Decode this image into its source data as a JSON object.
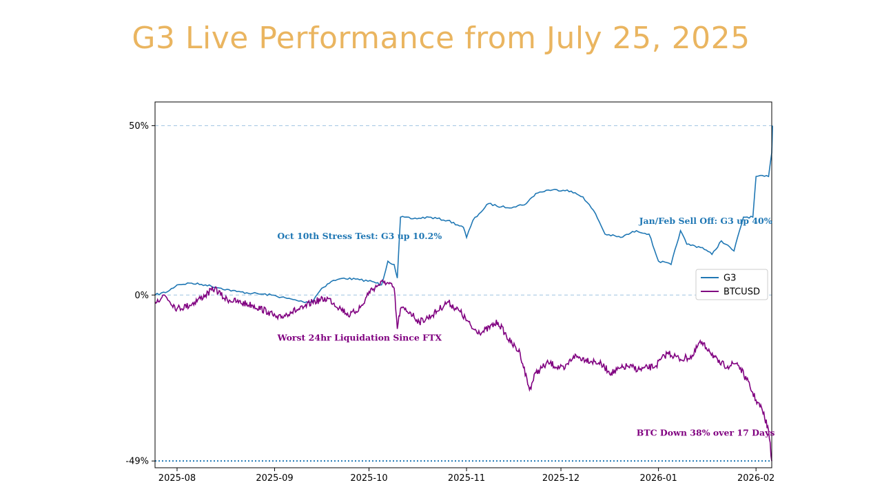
{
  "title": "G3 Live Performance from July 25, 2025",
  "colors": {
    "title": "#eab560",
    "g3": "#1f77b4",
    "btc": "#800080",
    "grid": "#9ec3e0",
    "axis": "#000000"
  },
  "chart_data": {
    "type": "line",
    "title": "G3 Live Performance from July 25, 2025",
    "xlabel": "",
    "ylabel": "",
    "x_range": [
      "2025-07-25",
      "2026-02-06"
    ],
    "ylim": [
      -0.51,
      0.57
    ],
    "x_ticks": [
      "2025-08",
      "2025-09",
      "2025-10",
      "2025-11",
      "2025-12",
      "2026-01",
      "2026-02"
    ],
    "x_tick_dates": [
      "2025-08-01",
      "2025-09-01",
      "2025-10-01",
      "2025-11-01",
      "2025-12-01",
      "2026-01-01",
      "2026-02-01"
    ],
    "y_ticks": [
      {
        "value": 0.5,
        "label": "50%"
      },
      {
        "value": 0.0,
        "label": "0%"
      },
      {
        "value": -0.49,
        "label": "-49%"
      }
    ],
    "reference_lines": [
      {
        "value": 0.5,
        "style": "dashed"
      },
      {
        "value": 0.0,
        "style": "dashed"
      },
      {
        "value": -0.49,
        "style": "dotted"
      }
    ],
    "legend": {
      "position": "center-right",
      "entries": [
        "G3",
        "BTCUSD"
      ]
    },
    "series": [
      {
        "name": "G3",
        "points": [
          [
            "2025-07-25",
            0.0
          ],
          [
            "2025-07-29",
            0.01
          ],
          [
            "2025-08-01",
            0.03
          ],
          [
            "2025-08-05",
            0.035
          ],
          [
            "2025-08-10",
            0.03
          ],
          [
            "2025-08-15",
            0.02
          ],
          [
            "2025-08-20",
            0.01
          ],
          [
            "2025-08-25",
            0.005
          ],
          [
            "2025-08-31",
            0.0
          ],
          [
            "2025-09-05",
            -0.01
          ],
          [
            "2025-09-10",
            -0.02
          ],
          [
            "2025-09-13",
            -0.02
          ],
          [
            "2025-09-14",
            -0.005
          ],
          [
            "2025-09-16",
            0.02
          ],
          [
            "2025-09-19",
            0.04
          ],
          [
            "2025-09-23",
            0.05
          ],
          [
            "2025-09-28",
            0.045
          ],
          [
            "2025-10-02",
            0.04
          ],
          [
            "2025-10-05",
            0.03
          ],
          [
            "2025-10-07",
            0.1
          ],
          [
            "2025-10-09",
            0.09
          ],
          [
            "2025-10-10",
            0.05
          ],
          [
            "2025-10-11",
            0.23
          ],
          [
            "2025-10-15",
            0.225
          ],
          [
            "2025-10-20",
            0.23
          ],
          [
            "2025-10-26",
            0.22
          ],
          [
            "2025-10-31",
            0.2
          ],
          [
            "2025-11-01",
            0.17
          ],
          [
            "2025-11-03",
            0.22
          ],
          [
            "2025-11-05",
            0.24
          ],
          [
            "2025-11-08",
            0.27
          ],
          [
            "2025-11-12",
            0.26
          ],
          [
            "2025-11-16",
            0.26
          ],
          [
            "2025-11-20",
            0.27
          ],
          [
            "2025-11-23",
            0.3
          ],
          [
            "2025-11-27",
            0.31
          ],
          [
            "2025-12-03",
            0.31
          ],
          [
            "2025-12-08",
            0.29
          ],
          [
            "2025-12-12",
            0.24
          ],
          [
            "2025-12-15",
            0.18
          ],
          [
            "2025-12-20",
            0.17
          ],
          [
            "2025-12-25",
            0.19
          ],
          [
            "2025-12-29",
            0.18
          ],
          [
            "2026-01-01",
            0.1
          ],
          [
            "2026-01-05",
            0.09
          ],
          [
            "2026-01-08",
            0.19
          ],
          [
            "2026-01-10",
            0.15
          ],
          [
            "2026-01-15",
            0.14
          ],
          [
            "2026-01-18",
            0.12
          ],
          [
            "2026-01-21",
            0.16
          ],
          [
            "2026-01-25",
            0.13
          ],
          [
            "2026-01-28",
            0.23
          ],
          [
            "2026-01-31",
            0.23
          ],
          [
            "2026-02-01",
            0.35
          ],
          [
            "2026-02-05",
            0.35
          ],
          [
            "2026-02-06",
            0.42
          ],
          [
            "2026-02-06T06:00",
            0.5
          ]
        ]
      },
      {
        "name": "BTCUSD",
        "points": [
          [
            "2025-07-25",
            -0.02
          ],
          [
            "2025-07-28",
            0.0
          ],
          [
            "2025-08-01",
            -0.04
          ],
          [
            "2025-08-05",
            -0.03
          ],
          [
            "2025-08-10",
            0.0
          ],
          [
            "2025-08-13",
            0.02
          ],
          [
            "2025-08-16",
            -0.01
          ],
          [
            "2025-08-20",
            -0.02
          ],
          [
            "2025-08-25",
            -0.03
          ],
          [
            "2025-08-30",
            -0.05
          ],
          [
            "2025-09-02",
            -0.07
          ],
          [
            "2025-09-06",
            -0.05
          ],
          [
            "2025-09-10",
            -0.04
          ],
          [
            "2025-09-13",
            -0.02
          ],
          [
            "2025-09-18",
            -0.01
          ],
          [
            "2025-09-22",
            -0.04
          ],
          [
            "2025-09-25",
            -0.06
          ],
          [
            "2025-09-29",
            -0.03
          ],
          [
            "2025-10-01",
            0.01
          ],
          [
            "2025-10-04",
            0.03
          ],
          [
            "2025-10-06",
            0.04
          ],
          [
            "2025-10-09",
            0.02
          ],
          [
            "2025-10-10",
            -0.1
          ],
          [
            "2025-10-11",
            -0.04
          ],
          [
            "2025-10-14",
            -0.05
          ],
          [
            "2025-10-17",
            -0.08
          ],
          [
            "2025-10-21",
            -0.06
          ],
          [
            "2025-10-26",
            -0.02
          ],
          [
            "2025-10-30",
            -0.05
          ],
          [
            "2025-11-03",
            -0.1
          ],
          [
            "2025-11-06",
            -0.11
          ],
          [
            "2025-11-11",
            -0.08
          ],
          [
            "2025-11-15",
            -0.14
          ],
          [
            "2025-11-18",
            -0.17
          ],
          [
            "2025-11-21",
            -0.28
          ],
          [
            "2025-11-23",
            -0.23
          ],
          [
            "2025-11-27",
            -0.2
          ],
          [
            "2025-12-02",
            -0.22
          ],
          [
            "2025-12-05",
            -0.18
          ],
          [
            "2025-12-09",
            -0.19
          ],
          [
            "2025-12-13",
            -0.2
          ],
          [
            "2025-12-17",
            -0.23
          ],
          [
            "2025-12-22",
            -0.21
          ],
          [
            "2025-12-26",
            -0.22
          ],
          [
            "2025-12-31",
            -0.21
          ],
          [
            "2026-01-04",
            -0.17
          ],
          [
            "2026-01-08",
            -0.19
          ],
          [
            "2026-01-12",
            -0.18
          ],
          [
            "2026-01-14",
            -0.14
          ],
          [
            "2026-01-17",
            -0.16
          ],
          [
            "2026-01-20",
            -0.2
          ],
          [
            "2026-01-23",
            -0.21
          ],
          [
            "2026-01-26",
            -0.2
          ],
          [
            "2026-01-29",
            -0.25
          ],
          [
            "2026-02-01",
            -0.31
          ],
          [
            "2026-02-03",
            -0.34
          ],
          [
            "2026-02-05",
            -0.4
          ],
          [
            "2026-02-06",
            -0.49
          ]
        ]
      }
    ],
    "annotations": [
      {
        "text": "Oct 10th Stress Test: G3 up 10.2%",
        "series": "G3",
        "x": "2025-09-28",
        "y": 0.165
      },
      {
        "text": "Worst 24hr Liquidation Since FTX",
        "series": "BTCUSD",
        "x": "2025-09-28",
        "y": -0.135
      },
      {
        "text": "Jan/Feb Sell Off: G3 up 40%",
        "series": "G3",
        "x": "2026-01-16",
        "y": 0.21
      },
      {
        "text": "BTC Down 38% over 17 Days",
        "series": "BTCUSD",
        "x": "2026-01-16",
        "y": -0.415
      }
    ]
  }
}
